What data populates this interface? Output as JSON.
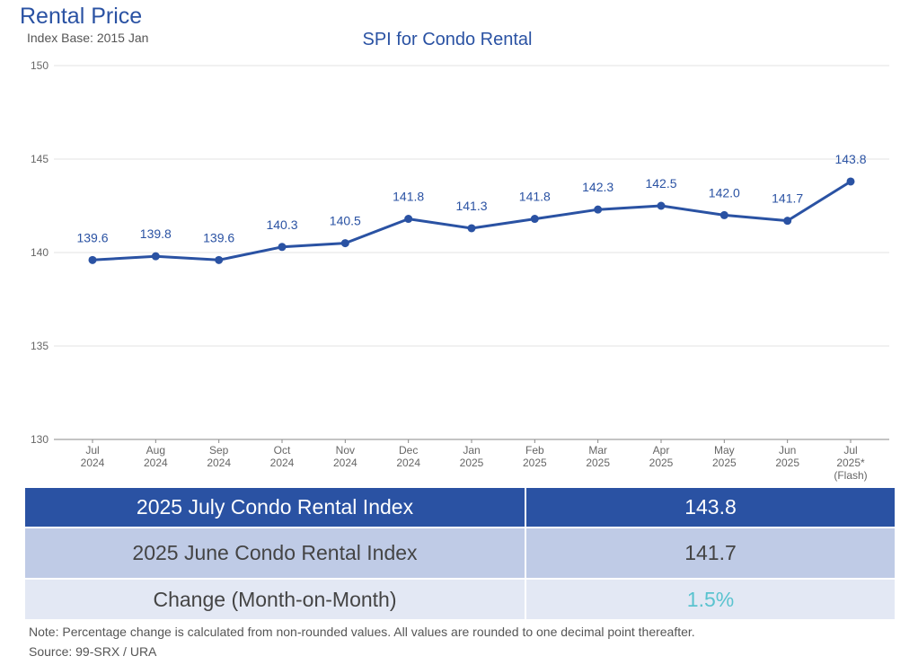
{
  "header": {
    "title": "Rental Price",
    "subtitle": "Index Base: 2015 Jan"
  },
  "chart_data": {
    "type": "line",
    "title": "SPI for Condo Rental",
    "xlabel": "",
    "ylabel": "",
    "ylim": [
      130,
      150
    ],
    "yticks": [
      130,
      135,
      140,
      145,
      150
    ],
    "grid": true,
    "categories": [
      [
        "Jul",
        "2024"
      ],
      [
        "Aug",
        "2024"
      ],
      [
        "Sep",
        "2024"
      ],
      [
        "Oct",
        "2024"
      ],
      [
        "Nov",
        "2024"
      ],
      [
        "Dec",
        "2024"
      ],
      [
        "Jan",
        "2025"
      ],
      [
        "Feb",
        "2025"
      ],
      [
        "Mar",
        "2025"
      ],
      [
        "Apr",
        "2025"
      ],
      [
        "May",
        "2025"
      ],
      [
        "Jun",
        "2025"
      ],
      [
        "Jul",
        "2025*",
        "(Flash)"
      ]
    ],
    "series": [
      {
        "values": [
          139.6,
          139.8,
          139.6,
          140.3,
          140.5,
          141.8,
          141.3,
          141.8,
          142.3,
          142.5,
          142.0,
          141.7,
          143.8
        ],
        "labels": [
          "139.6",
          "139.8",
          "139.6",
          "140.3",
          "140.5",
          "141.8",
          "141.3",
          "141.8",
          "142.3",
          "142.5",
          "142.0",
          "141.7",
          "143.8"
        ],
        "color": "#2a52a3"
      }
    ]
  },
  "summary_table": {
    "rows": [
      {
        "label": "2025 July Condo Rental Index",
        "value": "143.8"
      },
      {
        "label": "2025 June Condo Rental Index",
        "value": "141.7"
      },
      {
        "label": "Change (Month-on-Month)",
        "value": "1.5%"
      }
    ]
  },
  "footer": {
    "note": "Note: Percentage change is calculated from non-rounded values.  All values are rounded to one decimal point thereafter.",
    "source": "Source: 99-SRX / URA"
  },
  "colors": {
    "accent": "#2a52a3",
    "header_row": "#2a52a3",
    "row2": "#bfcbe6",
    "row3": "#e3e8f4",
    "change_value": "#5ac3cf"
  }
}
